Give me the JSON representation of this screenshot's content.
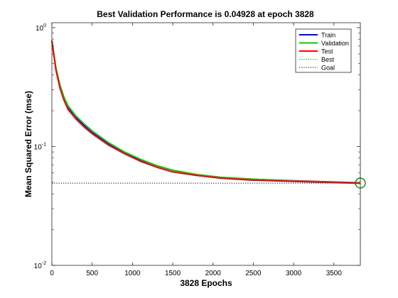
{
  "chart_data": {
    "type": "line",
    "title": "Best Validation Performance is 0.04928 at epoch 3828",
    "xlabel": "3828 Epochs",
    "ylabel": "Mean Squared Error  (mse)",
    "x_scale": "linear",
    "y_scale": "log",
    "xlim": [
      0,
      3828
    ],
    "ylim": [
      0.01,
      1.1
    ],
    "x_ticks": [
      0,
      500,
      1000,
      1500,
      2000,
      2500,
      3000,
      3500
    ],
    "x_tick_labels": [
      "0",
      "500",
      "1000",
      "1500",
      "2000",
      "2500",
      "3000",
      "3500"
    ],
    "y_ticks": [
      0.01,
      0.1,
      1
    ],
    "y_tick_labels": [
      {
        "base": "10",
        "exp": "-2"
      },
      {
        "base": "10",
        "exp": "-1"
      },
      {
        "base": "10",
        "exp": "0"
      }
    ],
    "legend_position": "top-right",
    "x": [
      0,
      50,
      100,
      150,
      200,
      300,
      400,
      500,
      700,
      900,
      1100,
      1300,
      1500,
      1800,
      2100,
      2500,
      3000,
      3500,
      3828
    ],
    "series": [
      {
        "name": "Train",
        "color": "#0000ff",
        "style": "solid",
        "values": [
          0.78,
          0.45,
          0.32,
          0.25,
          0.21,
          0.175,
          0.15,
          0.132,
          0.106,
          0.089,
          0.077,
          0.069,
          0.063,
          0.058,
          0.055,
          0.053,
          0.0515,
          0.0503,
          0.0495
        ]
      },
      {
        "name": "Validation",
        "color": "#00cc00",
        "style": "solid",
        "values": [
          0.78,
          0.46,
          0.33,
          0.26,
          0.22,
          0.18,
          0.155,
          0.135,
          0.108,
          0.09,
          0.078,
          0.069,
          0.063,
          0.058,
          0.055,
          0.053,
          0.0512,
          0.05,
          0.04928
        ]
      },
      {
        "name": "Test",
        "color": "#ff0000",
        "style": "solid",
        "values": [
          0.77,
          0.44,
          0.31,
          0.245,
          0.205,
          0.17,
          0.146,
          0.128,
          0.103,
          0.087,
          0.075,
          0.067,
          0.061,
          0.057,
          0.054,
          0.052,
          0.0508,
          0.0497,
          0.049
        ]
      }
    ],
    "best": {
      "label": "Best",
      "epoch": 3828,
      "value": 0.04928,
      "color": "#008000",
      "style": "dotted"
    },
    "goal": {
      "label": "Goal",
      "value": 0.0492,
      "color": "#000000",
      "style": "dotted"
    }
  }
}
